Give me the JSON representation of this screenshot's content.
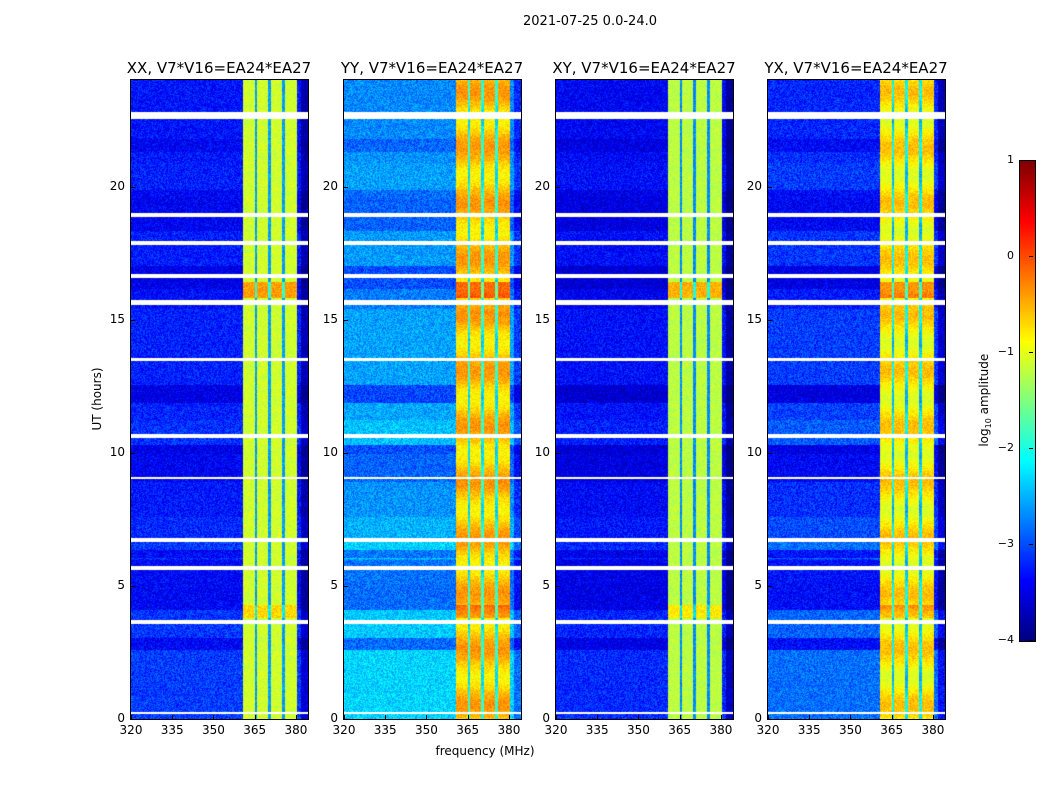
{
  "chart_data": {
    "type": "heatmap",
    "title": "2021-07-25 0.0-24.0",
    "xlabel": "frequency (MHz)",
    "ylabel": "UT (hours)",
    "xlim": [
      320,
      384.4
    ],
    "ylim": [
      0,
      24
    ],
    "xticks": [
      "320",
      "335",
      "350",
      "365",
      "380"
    ],
    "xtick_values": [
      320,
      335,
      350,
      365,
      380
    ],
    "yticks": [
      "0",
      "5",
      "10",
      "15",
      "20"
    ],
    "ytick_values": [
      0,
      5,
      10,
      15,
      20
    ],
    "colormap": "jet",
    "colorbar": {
      "label_main": "log",
      "label_sub": "10",
      "label_rest": " amplitude",
      "range": [
        -4,
        1
      ],
      "ticks": [
        "1",
        "0",
        "−1",
        "−2",
        "−3",
        "−4"
      ],
      "tick_values": [
        1,
        0,
        -1,
        -2,
        -3,
        -4
      ]
    },
    "panels": [
      {
        "title": "XX, V7*V16=EA24*EA27",
        "background_level": -3.3,
        "band_level": -1.1
      },
      {
        "title": "YY, V7*V16=EA24*EA27",
        "background_level": -2.7,
        "band_level": -0.6
      },
      {
        "title": "XY, V7*V16=EA24*EA27",
        "background_level": -3.4,
        "band_level": -1.2
      },
      {
        "title": "YX, V7*V16=EA24*EA27",
        "background_level": -3.2,
        "band_level": -0.8
      }
    ],
    "bright_band_mhz": [
      360.7,
      380.4
    ],
    "channel_edges_mhz": [
      365.5,
      370.5,
      375.6
    ],
    "flagged_intervals_hours": [
      [
        22.55,
        22.8
      ],
      [
        18.85,
        19.0
      ],
      [
        17.8,
        17.95
      ],
      [
        16.55,
        16.7
      ],
      [
        15.55,
        15.75
      ],
      [
        13.45,
        13.55
      ],
      [
        10.55,
        10.7
      ],
      [
        9.0,
        9.1
      ],
      [
        6.65,
        6.8
      ],
      [
        5.6,
        5.75
      ],
      [
        3.55,
        3.7
      ],
      [
        0.2,
        0.25
      ]
    ]
  }
}
